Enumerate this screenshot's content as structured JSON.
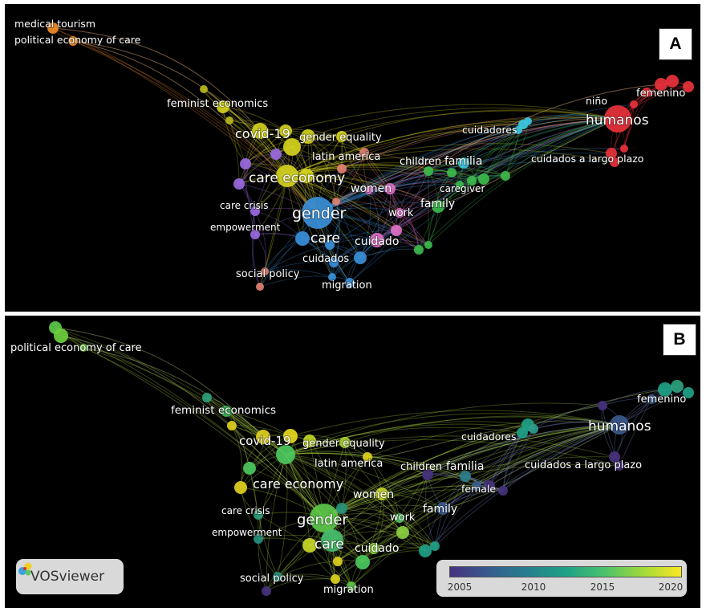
{
  "panels": [
    {
      "id": "A",
      "tag": "A",
      "labels": {
        "medical_tourism": "medical tourism",
        "political_economy_of_care": "political economy of care",
        "feminist_economics": "feminist economics",
        "covid_19": "covid-19",
        "gender_equality": "gender equality",
        "latin_america": "latin america",
        "care_economy": "care economy",
        "care_crisis": "care crisis",
        "empowerment": "empowerment",
        "gender": "gender",
        "care": "care",
        "cuidados": "cuidados",
        "social_policy": "social policy",
        "migration": "migration",
        "women": "women",
        "work": "work",
        "cuidado": "cuidado",
        "children": "children",
        "familia": "familia",
        "family": "family",
        "caregiver": "caregiver",
        "cuidadores": "cuidadores",
        "nino": "niño",
        "humanos": "humanos",
        "femenino": "femenino",
        "cuidados_a_largo_plazo": "cuidados a largo plazo"
      }
    },
    {
      "id": "B",
      "tag": "B",
      "labels": {
        "political_economy_of_care": "political economy of care",
        "feminist_economics": "feminist economics",
        "covid_19": "covid-19",
        "gender_equality": "gender equality",
        "latin_america": "latin america",
        "care_economy": "care economy",
        "care_crisis": "care crisis",
        "empowerment": "empowerment",
        "gender": "gender",
        "care": "care",
        "cuidado": "cuidado",
        "social_policy": "social policy",
        "migration": "migration",
        "women": "women",
        "work": "work",
        "children": "children",
        "familia": "familia",
        "family": "family",
        "female": "female",
        "cuidadores": "cuidadores",
        "humanos": "humanos",
        "femenino": "femenino",
        "cuidados_a_largo_plazo": "cuidados a largo plazo"
      }
    }
  ],
  "logo": {
    "text": "VOSviewer"
  },
  "color_scale": {
    "ticks": [
      "2005",
      "2010",
      "2015",
      "2020"
    ]
  },
  "colors": {
    "red": "#e8323c",
    "orange": "#f28c28",
    "yellow": "#d4d21f",
    "olive": "#b8b820",
    "blue": "#3a8fd8",
    "pink": "#e070c8",
    "green": "#3cba4c",
    "cyan": "#3cc8e0",
    "purple": "#9a6ae0",
    "salmon": "#e08070"
  }
}
